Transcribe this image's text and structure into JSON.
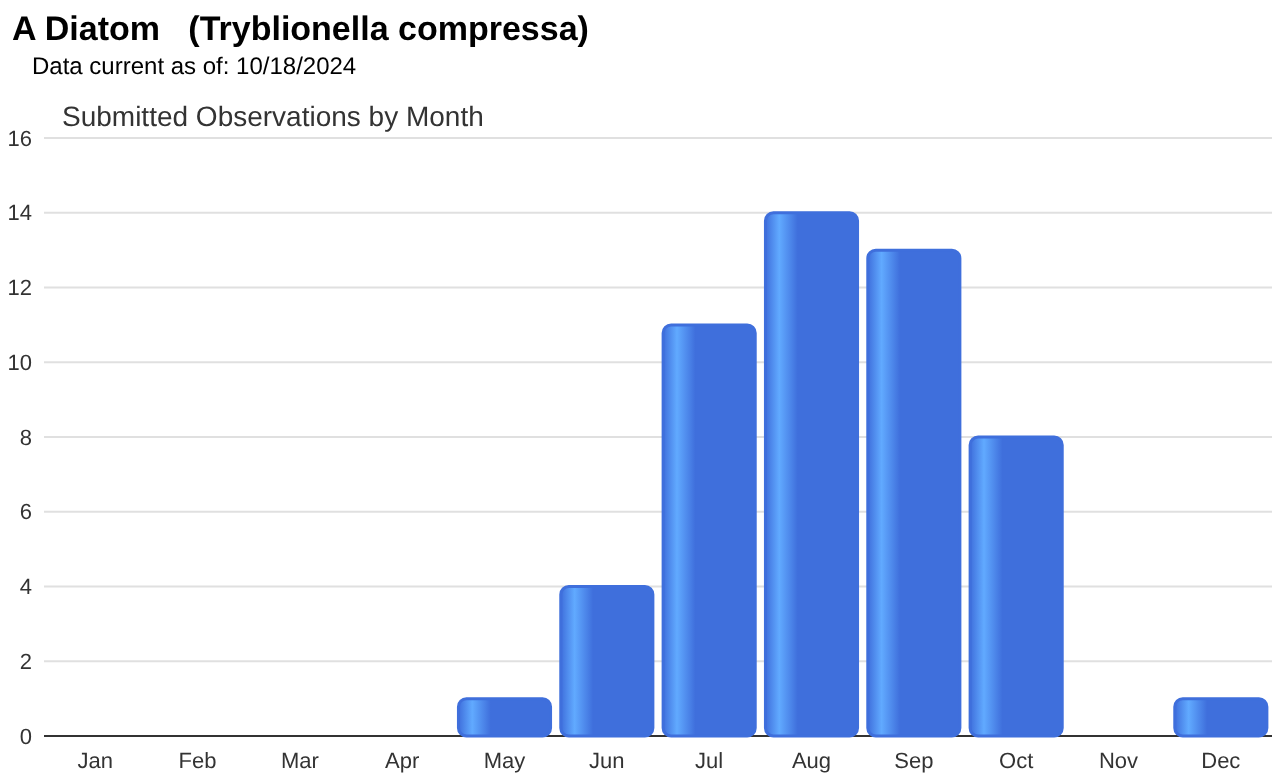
{
  "chart_data": {
    "type": "bar",
    "title": "A Diatom   (Tryblionella compressa)",
    "subtitle": "Data current as of: 10/18/2024",
    "annotations": [
      "Submitted Observations by Month"
    ],
    "categories": [
      "Jan",
      "Feb",
      "Mar",
      "Apr",
      "May",
      "Jun",
      "Jul",
      "Aug",
      "Sep",
      "Oct",
      "Nov",
      "Dec"
    ],
    "values": [
      0,
      0,
      0,
      0,
      1,
      4,
      11,
      14,
      13,
      8,
      0,
      1
    ],
    "color": "#3f6fdc",
    "ylim": [
      0,
      16
    ],
    "yticks": [
      0,
      2,
      4,
      6,
      8,
      10,
      12,
      14,
      16
    ],
    "grid": "y"
  }
}
